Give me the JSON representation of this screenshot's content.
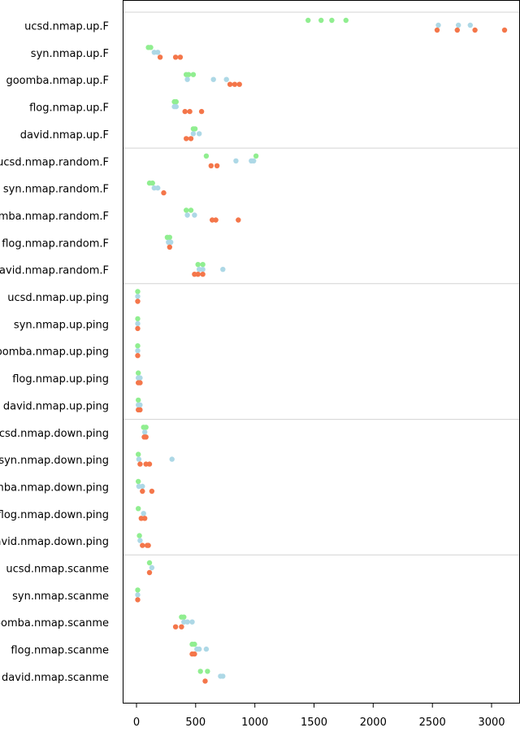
{
  "chart_data": {
    "type": "scatter",
    "title": "",
    "xlabel": "",
    "ylabel": "",
    "xlim": [
      -120,
      3160
    ],
    "x_ticks": [
      0,
      500,
      1000,
      1500,
      2000,
      2500,
      3000
    ],
    "x_tick_labels": [
      "0",
      "500",
      "1000",
      "1500",
      "2000",
      "2500",
      "3000"
    ],
    "grid": false,
    "legend": "none",
    "colors": {
      "green": "#90ee90",
      "blue": "#add8e6",
      "orange": "#f4764a",
      "separator": "#d3d3d3"
    },
    "groups": [
      {
        "rows": [
          {
            "label": "ucsd.nmap.up.F",
            "green": [
              1450,
              1560,
              1650,
              1770
            ],
            "blue": [
              2550,
              2720,
              2820
            ],
            "orange": [
              2540,
              2710,
              2860,
              3110
            ]
          },
          {
            "label": "syn.nmap.up.F",
            "green": [
              100,
              120
            ],
            "blue": [
              150,
              180
            ],
            "orange": [
              200,
              330,
              370
            ]
          },
          {
            "label": "goomba.nmap.up.F",
            "green": [
              420,
              440,
              480
            ],
            "blue": [
              430,
              650,
              760
            ],
            "orange": [
              790,
              830,
              870
            ]
          },
          {
            "label": "flog.nmap.up.F",
            "green": [
              320,
              335
            ],
            "blue": [
              320,
              335
            ],
            "orange": [
              410,
              450,
              550
            ]
          },
          {
            "label": "david.nmap.up.F",
            "green": [
              480,
              495
            ],
            "blue": [
              480,
              530
            ],
            "orange": [
              420,
              460
            ]
          }
        ]
      },
      {
        "rows": [
          {
            "label": "ucsd.nmap.random.F",
            "green": [
              590,
              1010
            ],
            "blue": [
              840,
              970,
              990
            ],
            "orange": [
              630,
              680
            ]
          },
          {
            "label": "syn.nmap.random.F",
            "green": [
              110,
              135
            ],
            "blue": [
              150,
              180
            ],
            "orange": [
              230
            ]
          },
          {
            "label": "goomba.nmap.random.F",
            "green": [
              420,
              460
            ],
            "blue": [
              430,
              490
            ],
            "orange": [
              640,
              670,
              860
            ]
          },
          {
            "label": "flog.nmap.random.F",
            "green": [
              260,
              280
            ],
            "blue": [
              270,
              290
            ],
            "orange": [
              280
            ]
          },
          {
            "label": "david.nmap.random.F",
            "green": [
              520,
              560
            ],
            "blue": [
              530,
              560,
              730
            ],
            "orange": [
              490,
              520,
              560
            ]
          }
        ]
      },
      {
        "rows": [
          {
            "label": "ucsd.nmap.up.ping",
            "green": [
              10
            ],
            "blue": [
              10
            ],
            "orange": [
              10
            ]
          },
          {
            "label": "syn.nmap.up.ping",
            "green": [
              10
            ],
            "blue": [
              10
            ],
            "orange": [
              10
            ]
          },
          {
            "label": "goomba.nmap.up.ping",
            "green": [
              10
            ],
            "blue": [
              10
            ],
            "orange": [
              10
            ]
          },
          {
            "label": "flog.nmap.up.ping",
            "green": [
              15
            ],
            "blue": [
              15,
              30
            ],
            "orange": [
              15,
              30
            ]
          },
          {
            "label": "david.nmap.up.ping",
            "green": [
              15
            ],
            "blue": [
              15,
              30
            ],
            "orange": [
              15,
              30
            ]
          }
        ]
      },
      {
        "rows": [
          {
            "label": "ucsd.nmap.down.ping",
            "green": [
              60,
              80
            ],
            "blue": [
              70
            ],
            "orange": [
              65,
              80
            ]
          },
          {
            "label": "syn.nmap.down.ping",
            "green": [
              15
            ],
            "blue": [
              20,
              300
            ],
            "orange": [
              30,
              80,
              110
            ]
          },
          {
            "label": "goomba.nmap.down.ping",
            "green": [
              15
            ],
            "blue": [
              20,
              50
            ],
            "orange": [
              50,
              130
            ]
          },
          {
            "label": "flog.nmap.down.ping",
            "green": [
              15
            ],
            "blue": [
              60
            ],
            "orange": [
              40,
              70
            ]
          },
          {
            "label": "david.nmap.down.ping",
            "green": [
              25
            ],
            "blue": [
              30
            ],
            "orange": [
              50,
              90,
              100
            ]
          }
        ]
      },
      {
        "rows": [
          {
            "label": "ucsd.nmap.scanme",
            "green": [
              110
            ],
            "blue": [
              130
            ],
            "orange": [
              110
            ]
          },
          {
            "label": "syn.nmap.scanme",
            "green": [
              10
            ],
            "blue": [
              10
            ],
            "orange": [
              10
            ]
          },
          {
            "label": "goomba.nmap.scanme",
            "green": [
              380,
              400
            ],
            "blue": [
              400,
              430,
              470
            ],
            "orange": [
              330,
              380
            ]
          },
          {
            "label": "flog.nmap.scanme",
            "green": [
              470,
              490
            ],
            "blue": [
              510,
              530,
              590
            ],
            "orange": [
              470,
              490
            ]
          },
          {
            "label": "david.nmap.scanme",
            "green": [
              540,
              600
            ],
            "blue": [
              710,
              730
            ],
            "orange": [
              580
            ]
          }
        ]
      }
    ]
  }
}
